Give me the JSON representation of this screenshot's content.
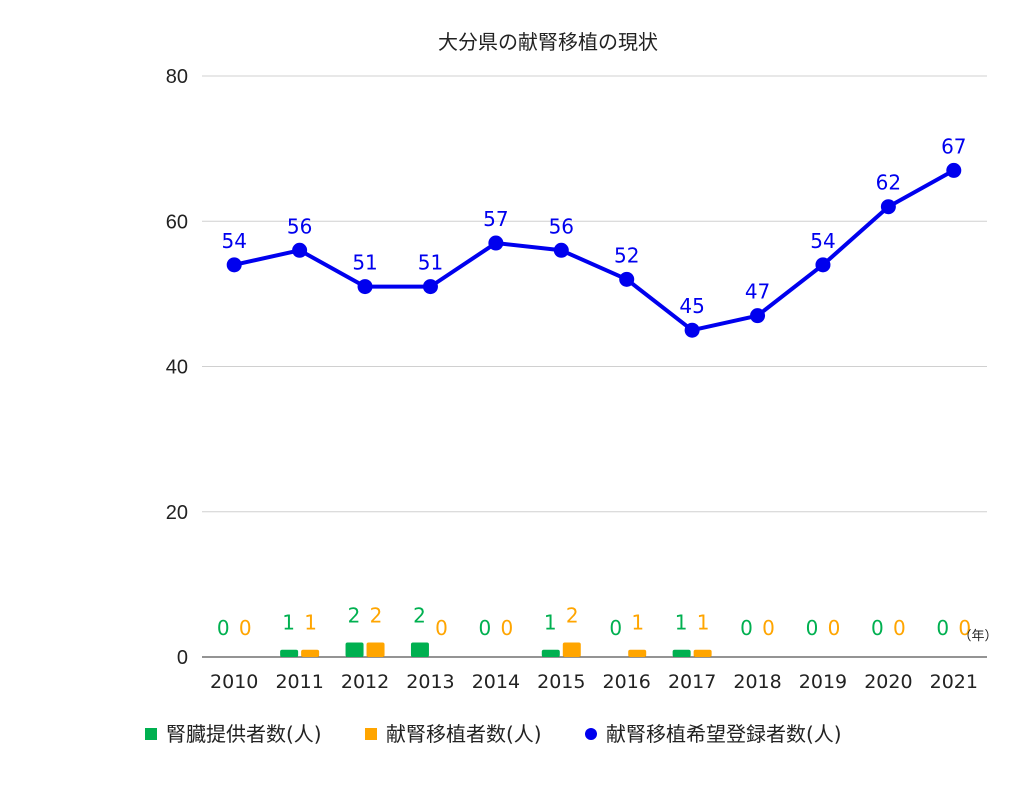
{
  "chart_data": {
    "type": "bar+line",
    "title": "大分県の献腎移植の現状",
    "x_unit": "（年）",
    "categories": [
      "2010",
      "2011",
      "2012",
      "2013",
      "2014",
      "2015",
      "2016",
      "2017",
      "2018",
      "2019",
      "2020",
      "2021"
    ],
    "ylim": [
      0,
      80
    ],
    "yticks": [
      "0",
      "20",
      "40",
      "60",
      "80"
    ],
    "grid": true,
    "legend_position": "bottom",
    "series": [
      {
        "name": "腎臓提供者数(人)",
        "kind": "bar",
        "color": "#00b050",
        "values": [
          0,
          1,
          2,
          2,
          0,
          1,
          0,
          1,
          0,
          0,
          0,
          0
        ]
      },
      {
        "name": "献腎移植者数(人)",
        "kind": "bar",
        "color": "#ffa500",
        "values": [
          0,
          1,
          2,
          0,
          0,
          2,
          1,
          1,
          0,
          0,
          0,
          0
        ]
      },
      {
        "name": "献腎移植希望登録者数(人)",
        "kind": "line",
        "color": "#0000ee",
        "values": [
          54,
          56,
          51,
          51,
          57,
          56,
          52,
          45,
          47,
          54,
          62,
          67
        ]
      }
    ]
  }
}
